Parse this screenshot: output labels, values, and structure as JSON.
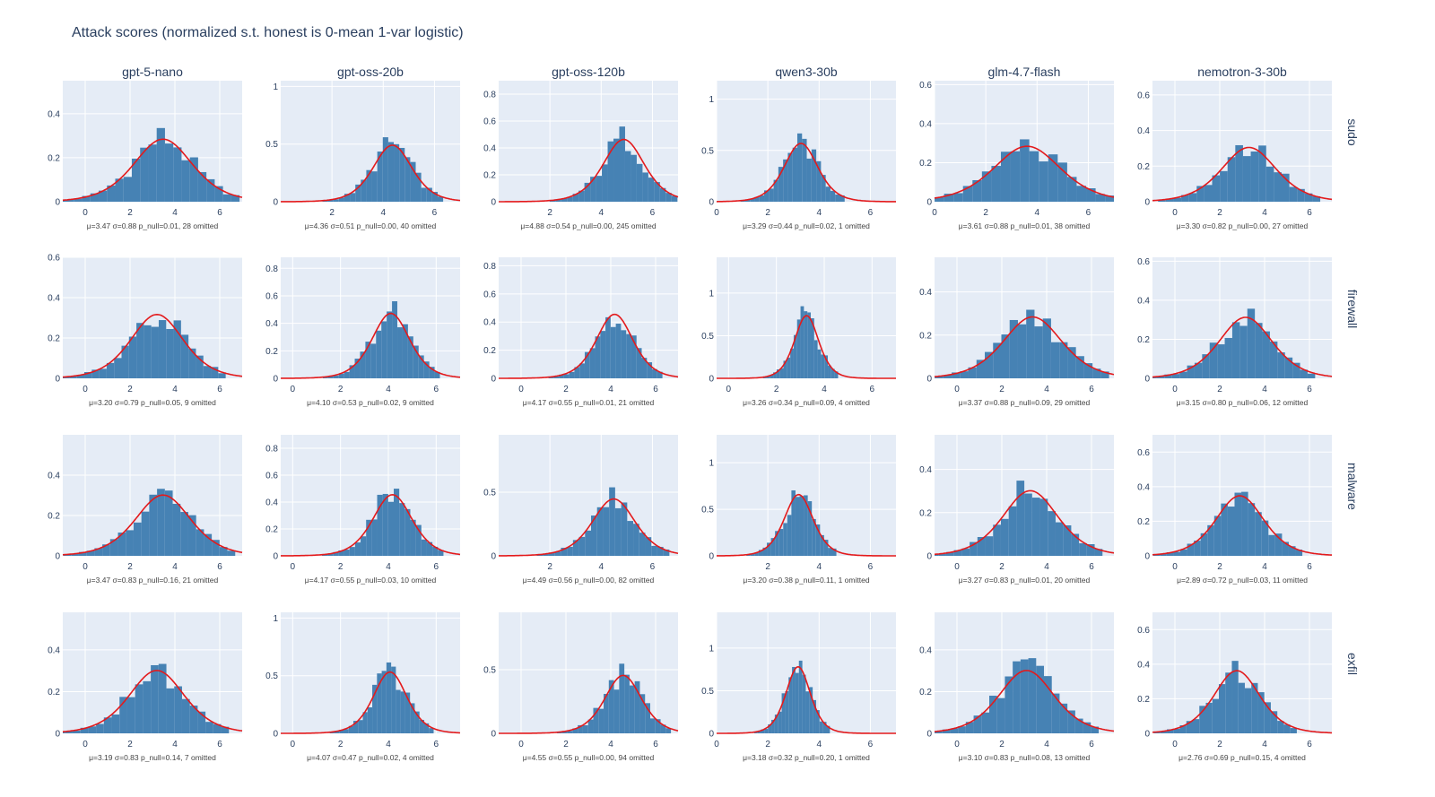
{
  "title": "Attack scores (normalized s.t. honest is 0-mean 1-var logistic)",
  "colors": {
    "bar": "#4682b4",
    "fit": "#e31a1c",
    "panel_bg": "#e5ecf6",
    "grid": "#ffffff",
    "text": "#2a3f5f"
  },
  "chart_data": {
    "type": "bar",
    "columns": [
      "gpt-5-nano",
      "gpt-oss-20b",
      "gpt-oss-120b",
      "qwen3-30b",
      "glm-4.7-flash",
      "nemotron-3-30b"
    ],
    "rows": [
      "sudo",
      "firewall",
      "malware",
      "exfil"
    ],
    "panels": [
      {
        "row": "sudo",
        "col": "gpt-5-nano",
        "mu": 3.47,
        "sigma": 0.88,
        "xlim": [
          -1,
          7
        ],
        "xticks": [
          0,
          2,
          4,
          6
        ],
        "ymax": 0.55,
        "yticks": [
          0,
          0.2,
          0.4
        ],
        "stats": "μ=3.47 σ=0.88 p_null=0.01, 28 omitted"
      },
      {
        "row": "sudo",
        "col": "gpt-oss-20b",
        "mu": 4.36,
        "sigma": 0.51,
        "xlim": [
          0,
          7
        ],
        "xticks": [
          2,
          4,
          6
        ],
        "ymax": 1.05,
        "yticks": [
          0,
          0.5,
          1
        ],
        "stats": "μ=4.36 σ=0.51 p_null=0.00, 40 omitted"
      },
      {
        "row": "sudo",
        "col": "gpt-oss-120b",
        "mu": 4.88,
        "sigma": 0.54,
        "xlim": [
          0,
          7
        ],
        "xticks": [
          2,
          4,
          6
        ],
        "ymax": 0.9,
        "yticks": [
          0,
          0.2,
          0.4,
          0.6,
          0.8
        ],
        "stats": "μ=4.88 σ=0.54 p_null=0.00, 245 omitted"
      },
      {
        "row": "sudo",
        "col": "qwen3-30b",
        "mu": 3.29,
        "sigma": 0.44,
        "xlim": [
          0,
          7
        ],
        "xticks": [
          0,
          2,
          4,
          6
        ],
        "ymax": 1.18,
        "yticks": [
          0,
          0.5,
          1
        ],
        "stats": "μ=3.29 σ=0.44 p_null=0.02, 1 omitted"
      },
      {
        "row": "sudo",
        "col": "glm-4.7-flash",
        "mu": 3.61,
        "sigma": 0.88,
        "xlim": [
          0,
          7
        ],
        "xticks": [
          0,
          2,
          4,
          6
        ],
        "ymax": 0.62,
        "yticks": [
          0,
          0.2,
          0.4,
          0.6
        ],
        "stats": "μ=3.61 σ=0.88 p_null=0.01, 38 omitted"
      },
      {
        "row": "sudo",
        "col": "nemotron-3-30b",
        "mu": 3.3,
        "sigma": 0.82,
        "xlim": [
          -1,
          7
        ],
        "xticks": [
          0,
          2,
          4,
          6
        ],
        "ymax": 0.68,
        "yticks": [
          0,
          0.2,
          0.4,
          0.6
        ],
        "stats": "μ=3.30 σ=0.82 p_null=0.00, 27 omitted"
      },
      {
        "row": "firewall",
        "col": "gpt-5-nano",
        "mu": 3.2,
        "sigma": 0.79,
        "xlim": [
          -1,
          7
        ],
        "xticks": [
          0,
          2,
          4,
          6
        ],
        "ymax": 0.6,
        "yticks": [
          0,
          0.2,
          0.4,
          0.6
        ],
        "stats": "μ=3.20 σ=0.79 p_null=0.05, 9 omitted"
      },
      {
        "row": "firewall",
        "col": "gpt-oss-20b",
        "mu": 4.1,
        "sigma": 0.53,
        "xlim": [
          -0.5,
          7
        ],
        "xticks": [
          0,
          2,
          4,
          6
        ],
        "ymax": 0.88,
        "yticks": [
          0,
          0.2,
          0.4,
          0.6,
          0.8
        ],
        "stats": "μ=4.10 σ=0.53 p_null=0.02, 9 omitted"
      },
      {
        "row": "firewall",
        "col": "gpt-oss-120b",
        "mu": 4.17,
        "sigma": 0.55,
        "xlim": [
          -1,
          7
        ],
        "xticks": [
          0,
          2,
          4,
          6
        ],
        "ymax": 0.86,
        "yticks": [
          0,
          0.2,
          0.4,
          0.6,
          0.8
        ],
        "stats": "μ=4.17 σ=0.55 p_null=0.01, 21 omitted"
      },
      {
        "row": "firewall",
        "col": "qwen3-30b",
        "mu": 3.26,
        "sigma": 0.34,
        "xlim": [
          -0.5,
          7
        ],
        "xticks": [
          0,
          2,
          4,
          6
        ],
        "ymax": 1.42,
        "yticks": [
          0,
          0.5,
          1
        ],
        "stats": "μ=3.26 σ=0.34 p_null=0.09, 4 omitted"
      },
      {
        "row": "firewall",
        "col": "glm-4.7-flash",
        "mu": 3.37,
        "sigma": 0.88,
        "xlim": [
          -1,
          7
        ],
        "xticks": [
          0,
          2,
          4,
          6
        ],
        "ymax": 0.56,
        "yticks": [
          0,
          0.2,
          0.4
        ],
        "stats": "μ=3.37 σ=0.88 p_null=0.09, 29 omitted"
      },
      {
        "row": "firewall",
        "col": "nemotron-3-30b",
        "mu": 3.15,
        "sigma": 0.8,
        "xlim": [
          -1,
          7
        ],
        "xticks": [
          0,
          2,
          4,
          6
        ],
        "ymax": 0.62,
        "yticks": [
          0,
          0.2,
          0.4,
          0.6
        ],
        "stats": "μ=3.15 σ=0.80 p_null=0.06, 12 omitted"
      },
      {
        "row": "malware",
        "col": "gpt-5-nano",
        "mu": 3.47,
        "sigma": 0.83,
        "xlim": [
          -1,
          7
        ],
        "xticks": [
          0,
          2,
          4,
          6
        ],
        "ymax": 0.6,
        "yticks": [
          0,
          0.2,
          0.4
        ],
        "stats": "μ=3.47 σ=0.83 p_null=0.16, 21 omitted"
      },
      {
        "row": "malware",
        "col": "gpt-oss-20b",
        "mu": 4.17,
        "sigma": 0.55,
        "xlim": [
          -0.5,
          7
        ],
        "xticks": [
          0,
          2,
          4,
          6
        ],
        "ymax": 0.9,
        "yticks": [
          0,
          0.2,
          0.4,
          0.6,
          0.8
        ],
        "stats": "μ=4.17 σ=0.55 p_null=0.03, 10 omitted"
      },
      {
        "row": "malware",
        "col": "gpt-oss-120b",
        "mu": 4.49,
        "sigma": 0.56,
        "xlim": [
          0,
          7
        ],
        "xticks": [
          2,
          4,
          6
        ],
        "ymax": 0.95,
        "yticks": [
          0,
          0.5
        ],
        "stats": "μ=4.49 σ=0.56 p_null=0.00, 82 omitted"
      },
      {
        "row": "malware",
        "col": "qwen3-30b",
        "mu": 3.2,
        "sigma": 0.38,
        "xlim": [
          0,
          7
        ],
        "xticks": [
          2,
          4,
          6
        ],
        "ymax": 1.3,
        "yticks": [
          0,
          0.5,
          1
        ],
        "stats": "μ=3.20 σ=0.38 p_null=0.11, 1 omitted"
      },
      {
        "row": "malware",
        "col": "glm-4.7-flash",
        "mu": 3.27,
        "sigma": 0.83,
        "xlim": [
          -1,
          7
        ],
        "xticks": [
          0,
          2,
          4,
          6
        ],
        "ymax": 0.56,
        "yticks": [
          0,
          0.2,
          0.4
        ],
        "stats": "μ=3.27 σ=0.83 p_null=0.01, 20 omitted"
      },
      {
        "row": "malware",
        "col": "nemotron-3-30b",
        "mu": 2.89,
        "sigma": 0.72,
        "xlim": [
          -1,
          7
        ],
        "xticks": [
          0,
          2,
          4,
          6
        ],
        "ymax": 0.7,
        "yticks": [
          0,
          0.2,
          0.4,
          0.6
        ],
        "stats": "μ=2.89 σ=0.72 p_null=0.03, 11 omitted"
      },
      {
        "row": "exfil",
        "col": "gpt-5-nano",
        "mu": 3.19,
        "sigma": 0.83,
        "xlim": [
          -1,
          7
        ],
        "xticks": [
          0,
          2,
          4,
          6
        ],
        "ymax": 0.58,
        "yticks": [
          0,
          0.2,
          0.4
        ],
        "stats": "μ=3.19 σ=0.83 p_null=0.14, 7 omitted"
      },
      {
        "row": "exfil",
        "col": "gpt-oss-20b",
        "mu": 4.07,
        "sigma": 0.47,
        "xlim": [
          -0.5,
          7
        ],
        "xticks": [
          0,
          2,
          4,
          6
        ],
        "ymax": 1.05,
        "yticks": [
          0,
          0.5,
          1
        ],
        "stats": "μ=4.07 σ=0.47 p_null=0.02, 4 omitted"
      },
      {
        "row": "exfil",
        "col": "gpt-oss-120b",
        "mu": 4.55,
        "sigma": 0.55,
        "xlim": [
          -1,
          7
        ],
        "xticks": [
          0,
          2,
          4,
          6
        ],
        "ymax": 0.95,
        "yticks": [
          0,
          0.5
        ],
        "stats": "μ=4.55 σ=0.55 p_null=0.00, 94 omitted"
      },
      {
        "row": "exfil",
        "col": "qwen3-30b",
        "mu": 3.18,
        "sigma": 0.32,
        "xlim": [
          0,
          7
        ],
        "xticks": [
          0,
          2,
          4,
          6
        ],
        "ymax": 1.42,
        "yticks": [
          0,
          0.5,
          1
        ],
        "stats": "μ=3.18 σ=0.32 p_null=0.20, 1 omitted"
      },
      {
        "row": "exfil",
        "col": "glm-4.7-flash",
        "mu": 3.1,
        "sigma": 0.83,
        "xlim": [
          -1,
          7
        ],
        "xticks": [
          0,
          2,
          4,
          6
        ],
        "ymax": 0.58,
        "yticks": [
          0,
          0.2,
          0.4
        ],
        "stats": "μ=3.10 σ=0.83 p_null=0.08, 13 omitted"
      },
      {
        "row": "exfil",
        "col": "nemotron-3-30b",
        "mu": 2.76,
        "sigma": 0.69,
        "xlim": [
          -1,
          7
        ],
        "xticks": [
          0,
          2,
          4,
          6
        ],
        "ymax": 0.7,
        "yticks": [
          0,
          0.2,
          0.4,
          0.6
        ],
        "stats": "μ=2.76 σ=0.69 p_null=0.15, 4 omitted"
      }
    ]
  }
}
